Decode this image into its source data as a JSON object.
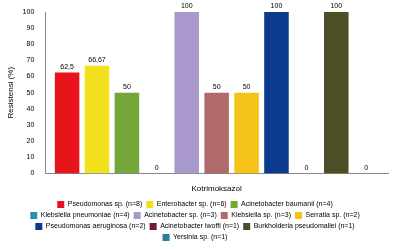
{
  "chart_data": {
    "type": "bar",
    "y_label": "Resistensi (%)",
    "categories": [
      "Kotrimoksazol"
    ],
    "ylim": [
      0,
      100
    ],
    "yticks": [
      0,
      10,
      20,
      30,
      40,
      50,
      60,
      70,
      80,
      90,
      100
    ],
    "grid": false,
    "legend": "bottom",
    "data_labels": true,
    "series": [
      {
        "name": "Pseudomonas sp. (n=8)",
        "color": "#e8141b",
        "values": [
          62.5
        ],
        "value_labels": [
          "62,5"
        ]
      },
      {
        "name": "Enterobacter sp. (n=6)",
        "color": "#f2e01c",
        "values": [
          66.67
        ],
        "value_labels": [
          "66,67"
        ]
      },
      {
        "name": "Acinetobacter baumanii (n=4)",
        "color": "#74a63a",
        "values": [
          50
        ]
      },
      {
        "name": "Klebsiella pneumoniae (n=4)",
        "color": "#2c8fb2",
        "values": [
          0
        ]
      },
      {
        "name": "Acinetobacter sp. (n=3)",
        "color": "#a898cb",
        "values": [
          100
        ]
      },
      {
        "name": "Klebsiella sp. (n=3)",
        "color": "#b06a6a",
        "values": [
          50
        ]
      },
      {
        "name": "Serratia sp. (n=2)",
        "color": "#f5c21a",
        "values": [
          50
        ]
      },
      {
        "name": "Pseudomonas aeruginosa (n=2)",
        "color": "#0b3a8e",
        "values": [
          100
        ]
      },
      {
        "name": "Acinetobacter lwoffi (n=1)",
        "color": "#6b1a3c",
        "values": [
          0
        ]
      },
      {
        "name": "Burkholderia pseudomallei (n=1)",
        "color": "#4e4e26",
        "values": [
          100
        ]
      },
      {
        "name": "Yersinia sp. (n=1)",
        "color": "#2a7f9c",
        "values": [
          0
        ]
      }
    ]
  }
}
